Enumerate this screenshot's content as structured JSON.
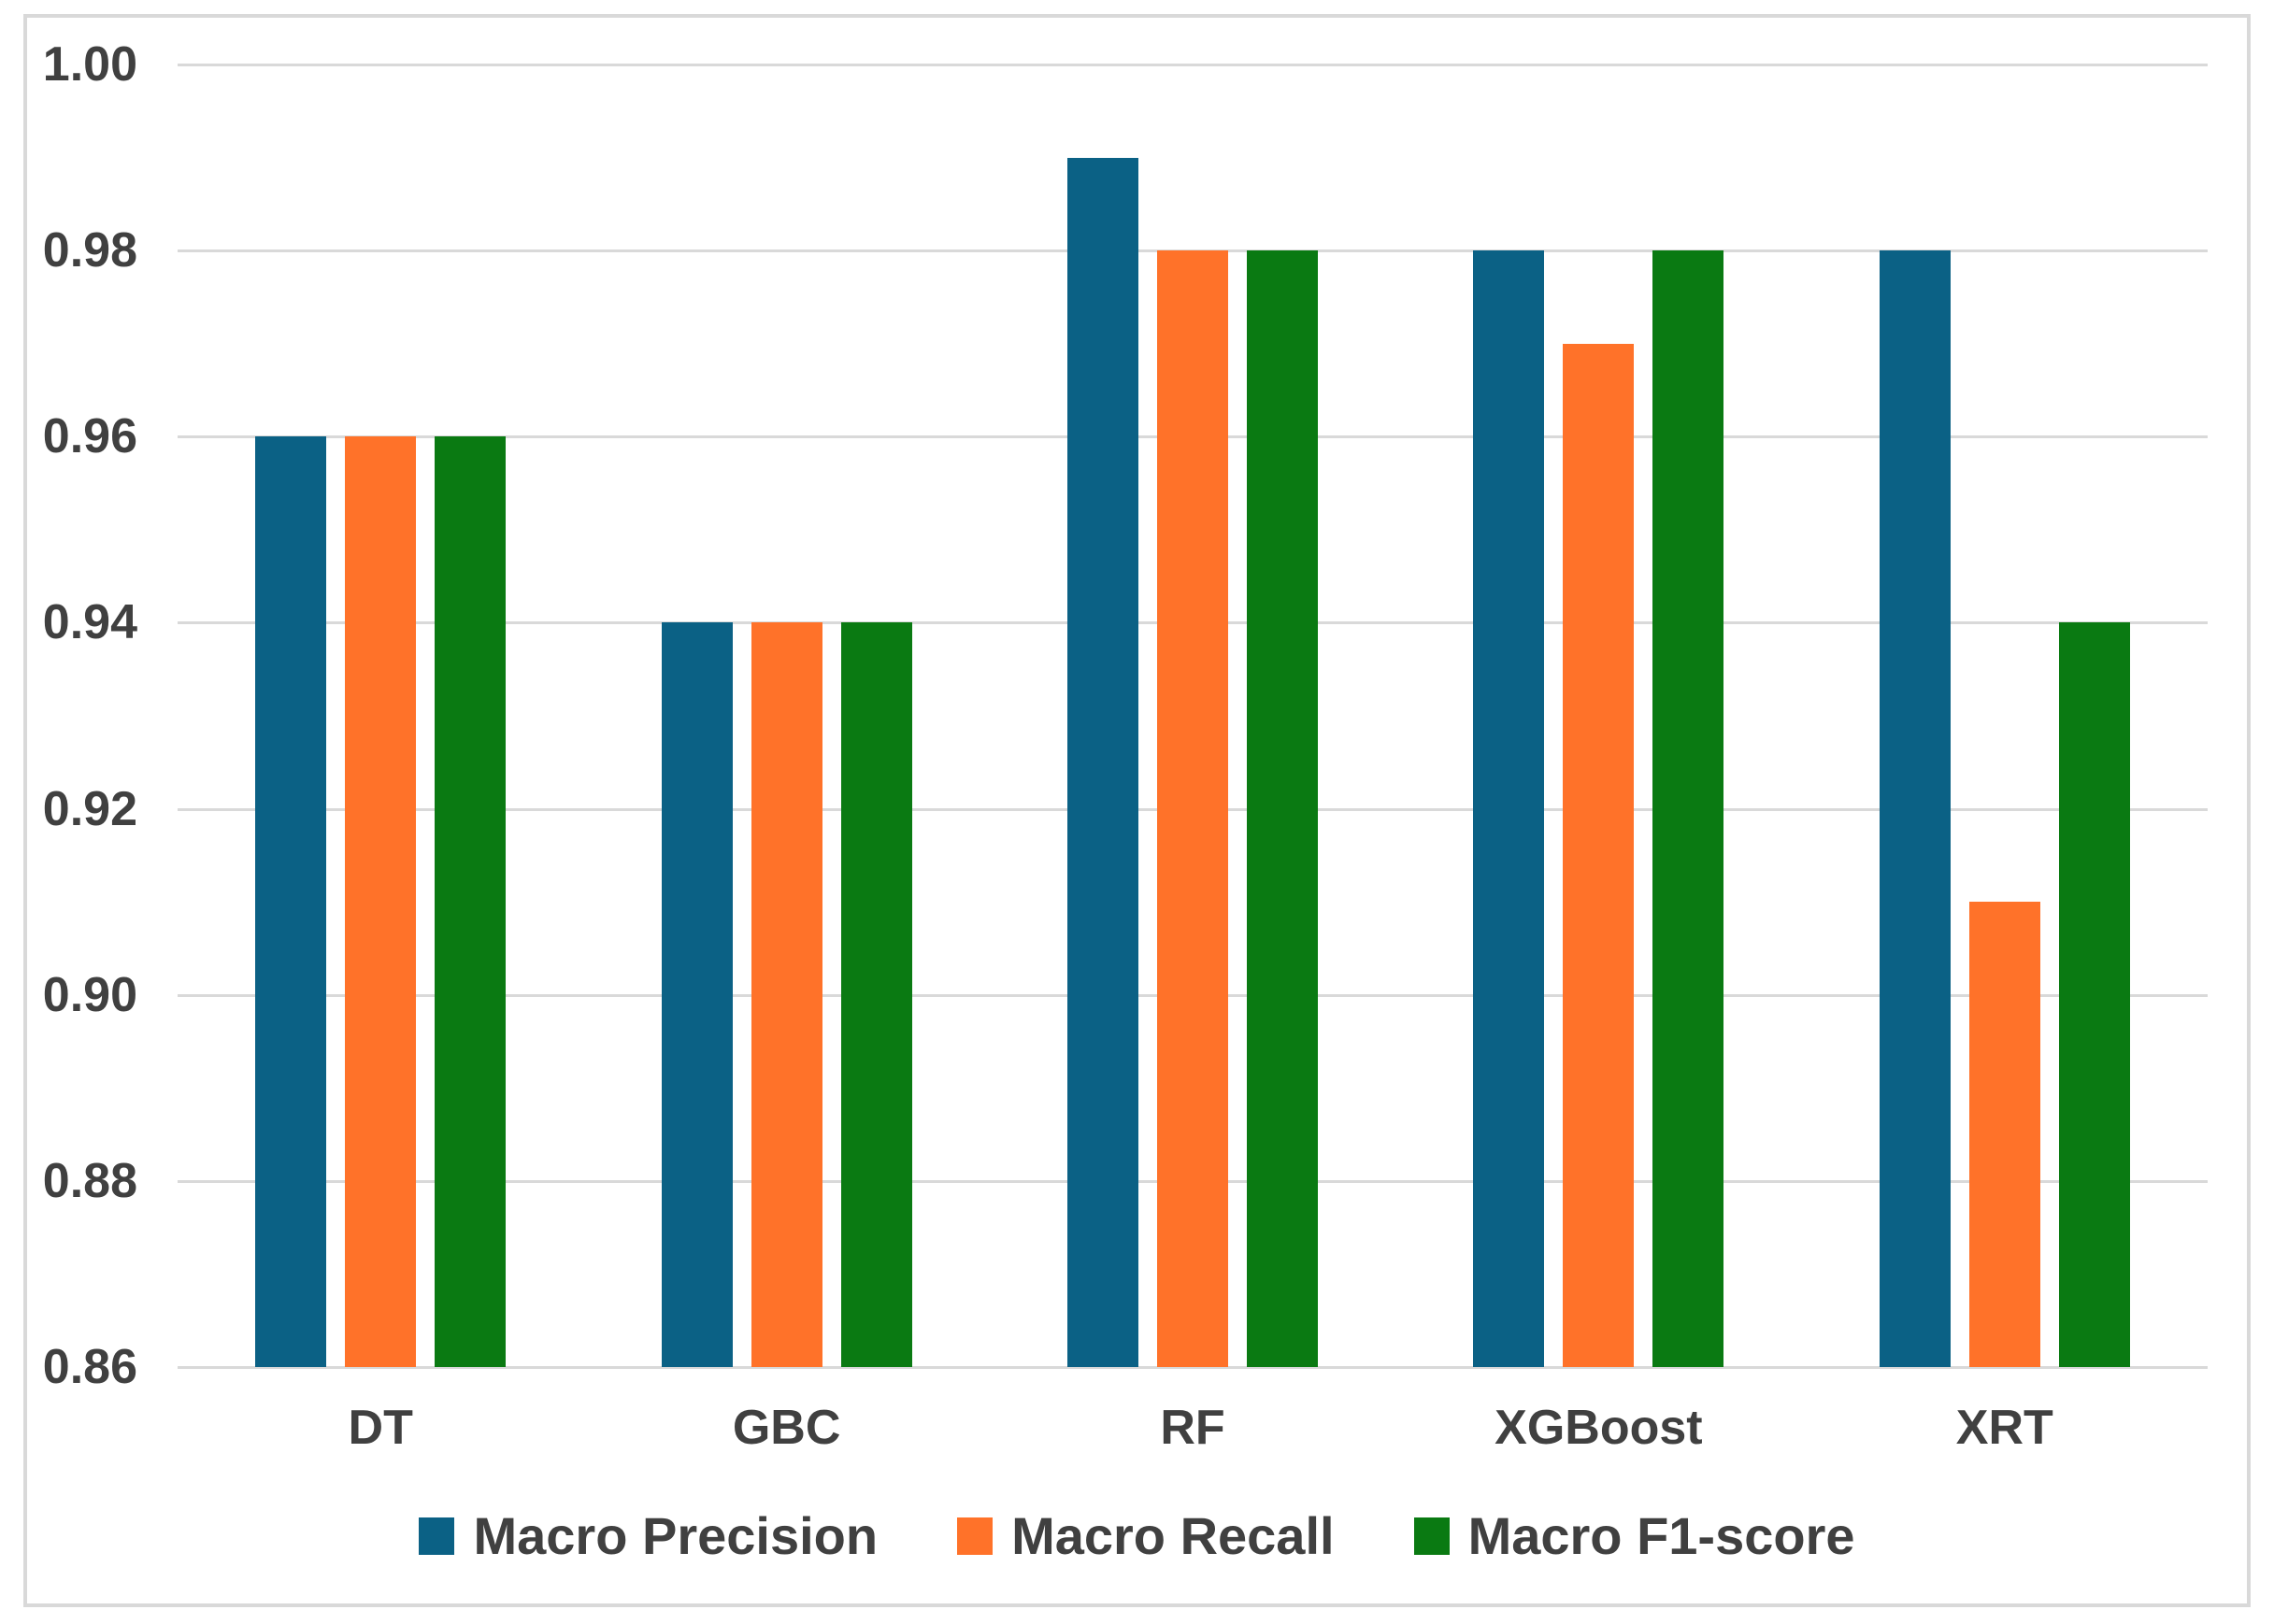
{
  "chart_data": {
    "type": "bar",
    "categories": [
      "DT",
      "GBC",
      "RF",
      "XGBoost",
      "XRT"
    ],
    "series": [
      {
        "name": "Macro Precision",
        "color": "#0B6185",
        "values": [
          0.96,
          0.94,
          0.99,
          0.98,
          0.98
        ]
      },
      {
        "name": "Macro Recall",
        "color": "#FF7229",
        "values": [
          0.96,
          0.94,
          0.98,
          0.97,
          0.91
        ]
      },
      {
        "name": "Macro F1-score",
        "color": "#0A7A12",
        "values": [
          0.96,
          0.94,
          0.98,
          0.98,
          0.94
        ]
      }
    ],
    "title": "",
    "xlabel": "",
    "ylabel": "",
    "ylim": [
      0.86,
      1.0
    ],
    "ytick_step": 0.02,
    "ytick_labels": [
      "0.86",
      "0.88",
      "0.90",
      "0.92",
      "0.94",
      "0.96",
      "0.98",
      "1.00"
    ],
    "grid": "horizontal",
    "legend_position": "bottom"
  },
  "colors": {
    "background": "#ffffff",
    "grid": "#d9d9d9",
    "frame_border": "#d9d9d9",
    "text": "#404040"
  }
}
